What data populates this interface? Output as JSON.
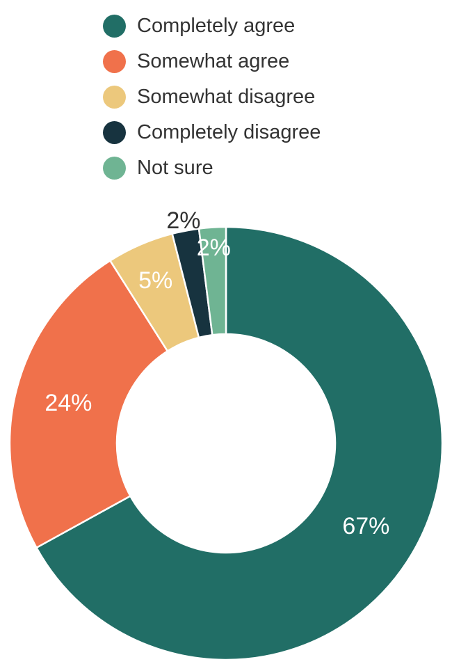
{
  "chart_data": {
    "type": "pie",
    "subtype": "donut",
    "title": "",
    "categories": [
      "Completely agree",
      "Somewhat agree",
      "Somewhat disagree",
      "Completely disagree",
      "Not sure"
    ],
    "values": [
      67,
      24,
      5,
      2,
      2
    ],
    "labels": [
      "67%",
      "24%",
      "5%",
      "2%",
      "2%"
    ],
    "colors": [
      "#216e66",
      "#f0714b",
      "#ecc87c",
      "#17333f",
      "#6fb493"
    ],
    "label_placement": [
      "inside",
      "inside",
      "inside",
      "outside",
      "inside"
    ],
    "inside_label_color": "#ffffff",
    "outside_label_color": "#333333",
    "legend_position": "top-left",
    "legend_text_color": "#333333",
    "start_angle_deg": 0,
    "direction": "clockwise",
    "donut_hole_ratio": 0.5,
    "slice_separator_color": "#ffffff"
  }
}
